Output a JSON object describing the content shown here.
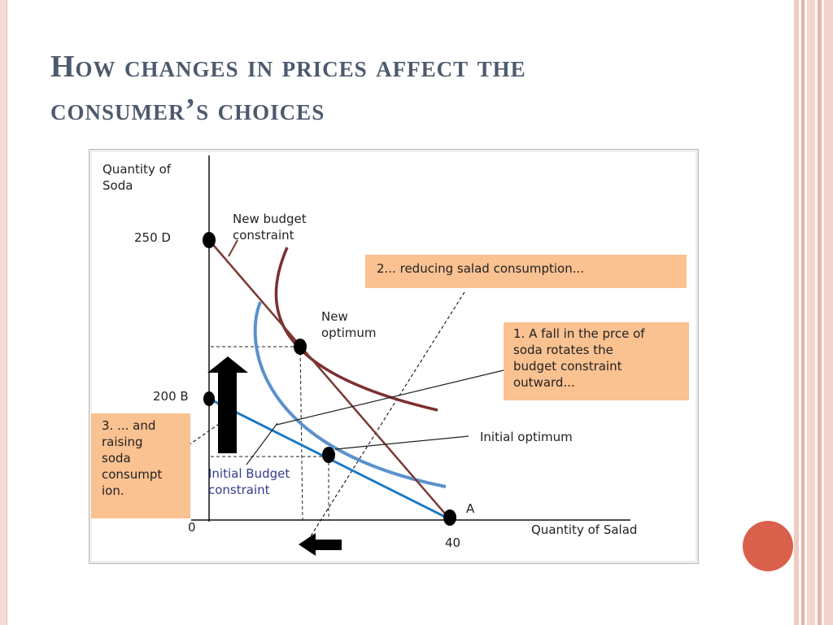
{
  "slide": {
    "title_line1": "How changes in prices affect the",
    "title_line2": "consumer’s choices",
    "colors": {
      "title": "#4d5a6d",
      "accent_dot": "#d9604a",
      "callout_fill": "#fac191"
    }
  },
  "diagram": {
    "y_axis_label_line1": "Quantity of",
    "y_axis_label_line2": "Soda",
    "x_axis_label": "Quantity of Salad",
    "origin_label": "0",
    "point_d_label": "250 D",
    "point_b_label": "200 B",
    "point_a_label": "A",
    "x_tick_label": "40",
    "new_budget_label_line1": "New budget",
    "new_budget_label_line2": "constraint",
    "new_optimum_label_line1": "New",
    "new_optimum_label_line2": "optimum",
    "initial_optimum_label": "Initial optimum",
    "initial_budget_label_line1": "Initial Budget",
    "initial_budget_label_line2": "constraint",
    "callout_2": "2... reducing salad consumption...",
    "callout_1_lines": [
      "1. A fall in the prce of",
      "soda rotates the",
      "budget constraint",
      "outward..."
    ],
    "callout_3_lines": [
      "3. ... and",
      "raising",
      "soda",
      "consumpt",
      "ion."
    ],
    "colors": {
      "new_budget_line": "#7a3a33",
      "initial_budget_line": "#1f78c1",
      "new_indifference_curve": "#7c2f2f",
      "initial_indifference_curve": "#5b91cc"
    }
  }
}
